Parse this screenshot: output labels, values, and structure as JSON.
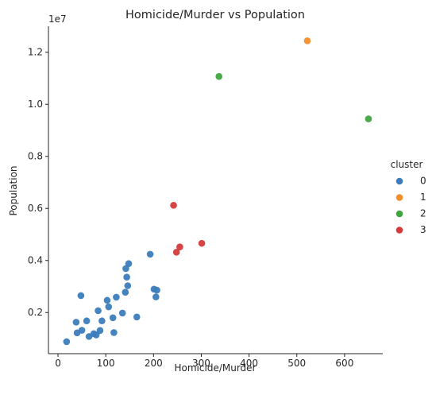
{
  "chart_data": {
    "type": "scatter",
    "title": "Homicide/Murder vs Population",
    "xlabel": "Homicide/Murder",
    "ylabel": "Population",
    "y_offset_text": "1e7",
    "xlim": [
      -20,
      680
    ],
    "ylim": [
      0.42,
      13.0
    ],
    "y_unit_multiplier": 1000000,
    "x_ticks": [
      0,
      100,
      200,
      300,
      400,
      500,
      600
    ],
    "x_tick_labels": [
      "0",
      "100",
      "200",
      "300",
      "400",
      "500",
      "600"
    ],
    "y_ticks": [
      2,
      4,
      6,
      8,
      10,
      12
    ],
    "y_tick_labels": [
      "0.2",
      "0.4",
      "0.6",
      "0.8",
      "1.0",
      "1.2"
    ],
    "grid": false,
    "legend": {
      "title": "cluster",
      "placement": "right"
    },
    "series": [
      {
        "name": "0",
        "color": "#3b7dba",
        "points": [
          [
            18,
            0.88
          ],
          [
            38,
            1.63
          ],
          [
            40,
            1.22
          ],
          [
            48,
            2.65
          ],
          [
            50,
            1.32
          ],
          [
            60,
            1.68
          ],
          [
            65,
            1.08
          ],
          [
            75,
            1.19
          ],
          [
            80,
            1.14
          ],
          [
            84,
            2.07
          ],
          [
            88,
            1.31
          ],
          [
            92,
            1.68
          ],
          [
            103,
            2.47
          ],
          [
            106,
            2.22
          ],
          [
            115,
            1.8
          ],
          [
            117,
            1.23
          ],
          [
            122,
            2.59
          ],
          [
            135,
            1.98
          ],
          [
            141,
            2.78
          ],
          [
            142,
            3.69
          ],
          [
            144,
            3.36
          ],
          [
            146,
            3.03
          ],
          [
            148,
            3.88
          ],
          [
            165,
            1.83
          ],
          [
            193,
            4.24
          ],
          [
            201,
            2.9
          ],
          [
            205,
            2.6
          ],
          [
            207,
            2.86
          ]
        ]
      },
      {
        "name": "1",
        "color": "#f28e2b",
        "points": [
          [
            522,
            12.44
          ]
        ]
      },
      {
        "name": "2",
        "color": "#3fa63f",
        "points": [
          [
            337,
            11.07
          ],
          [
            650,
            9.44
          ]
        ]
      },
      {
        "name": "3",
        "color": "#d43a3a",
        "points": [
          [
            242,
            6.12
          ],
          [
            248,
            4.32
          ],
          [
            255,
            4.52
          ],
          [
            301,
            4.66
          ]
        ]
      }
    ]
  }
}
